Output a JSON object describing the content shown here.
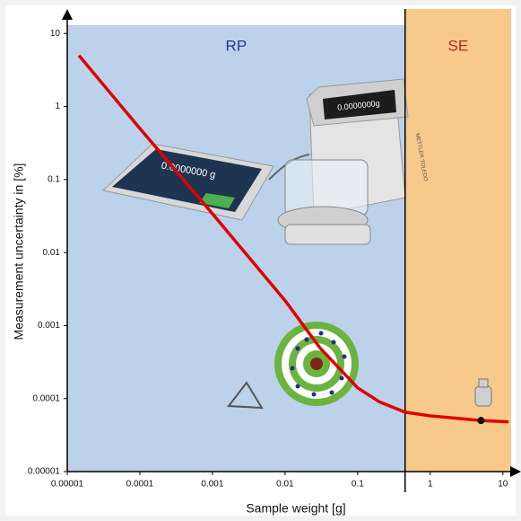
{
  "chart_data": {
    "type": "line",
    "x_label": "Sample weight [g]",
    "y_label": "Measurement uncertainty in [%]",
    "x_log": true,
    "y_log": true,
    "xlim": [
      1e-05,
      13
    ],
    "ylim": [
      1e-05,
      13
    ],
    "xticks": [
      1e-05,
      0.0001,
      0.001,
      0.01,
      0.1,
      1,
      10
    ],
    "yticks": [
      1e-05,
      0.0001,
      0.001,
      0.01,
      0.1,
      1,
      10
    ],
    "x": [
      1.45e-05,
      0.0001,
      0.001,
      0.01,
      0.03,
      0.1,
      0.2,
      0.45,
      1,
      5,
      12
    ],
    "values": [
      5,
      0.5,
      0.034,
      0.0022,
      0.0005,
      0.00014,
      9e-05,
      6.5e-05,
      5.8e-05,
      5e-05,
      4.8e-05
    ],
    "color": "#e00000",
    "marker": {
      "x": 5,
      "y": 5e-05,
      "color": "#000000"
    },
    "regions": [
      {
        "name": "RP",
        "from": 1e-05,
        "to": 0.45,
        "color": "#bcd2ea",
        "label_color": "#263a8f"
      },
      {
        "name": "SE",
        "from": 0.45,
        "to": 13,
        "color": "#f7c98b",
        "label_color": "#b52a20"
      }
    ],
    "terminal_display": "0.0000000 g",
    "balance_display": "0.0000000g",
    "brand": "METTLER TOLEDO"
  }
}
